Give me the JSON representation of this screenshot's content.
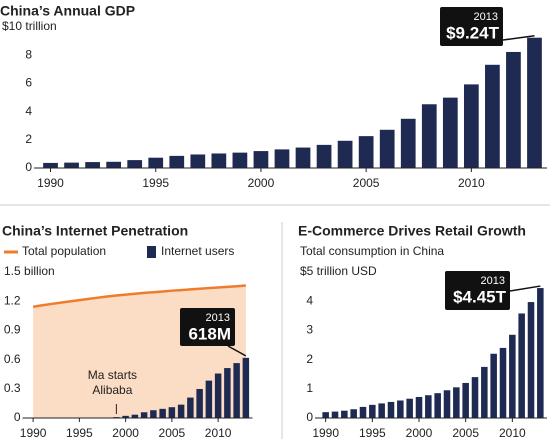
{
  "chart_data": [
    {
      "type": "bar",
      "title": "China’s Annual GDP",
      "x": [
        1990,
        1991,
        1992,
        1993,
        1994,
        1995,
        1996,
        1997,
        1998,
        1999,
        2000,
        2001,
        2002,
        2003,
        2004,
        2005,
        2006,
        2007,
        2008,
        2009,
        2010,
        2011,
        2012,
        2013
      ],
      "values": [
        0.36,
        0.38,
        0.42,
        0.44,
        0.56,
        0.73,
        0.86,
        0.96,
        1.03,
        1.09,
        1.2,
        1.32,
        1.45,
        1.64,
        1.93,
        2.26,
        2.71,
        3.49,
        4.52,
        4.99,
        5.93,
        7.32,
        8.23,
        9.24
      ],
      "color": "#1f2a52",
      "xlim": [
        1989.5,
        2013.5
      ],
      "xticks": [
        1990,
        1995,
        2000,
        2005,
        2010
      ],
      "ylim": [
        0,
        10
      ],
      "yticks": [
        0,
        2,
        4,
        6,
        8,
        {
          "value": 10,
          "label": "$10 trillion"
        }
      ],
      "callout": {
        "title": "2013",
        "text": "$9.24T"
      },
      "grid": false
    },
    {
      "type": "combo",
      "title": "China’s Internet Penetration",
      "x": [
        1990,
        1991,
        1992,
        1993,
        1994,
        1995,
        1996,
        1997,
        1998,
        1999,
        2000,
        2001,
        2002,
        2003,
        2004,
        2005,
        2006,
        2007,
        2008,
        2009,
        2010,
        2011,
        2012,
        2013
      ],
      "series": [
        {
          "name": "Total population",
          "type": "area",
          "color": "#f07c2b",
          "fill": "#fbdcc4",
          "values": [
            1.143,
            1.158,
            1.172,
            1.185,
            1.198,
            1.211,
            1.224,
            1.236,
            1.248,
            1.258,
            1.267,
            1.276,
            1.285,
            1.292,
            1.3,
            1.308,
            1.314,
            1.321,
            1.328,
            1.335,
            1.341,
            1.347,
            1.354,
            1.361
          ]
        },
        {
          "name": "Internet users",
          "type": "bar",
          "color": "#1f2a52",
          "values": [
            0,
            0,
            0,
            0,
            0,
            0,
            0,
            0,
            0.002,
            0.009,
            0.022,
            0.034,
            0.059,
            0.08,
            0.094,
            0.111,
            0.137,
            0.21,
            0.298,
            0.384,
            0.457,
            0.513,
            0.564,
            0.618
          ]
        }
      ],
      "xlim": [
        1989.5,
        2013.5
      ],
      "xticks": [
        1990,
        1995,
        2000,
        2005,
        2010
      ],
      "ylim": [
        0,
        1.5
      ],
      "yticks": [
        0,
        0.3,
        0.6,
        0.9,
        1.2,
        {
          "value": 1.5,
          "label": "1.5  billion"
        }
      ],
      "callout": {
        "title": "2013",
        "text": "618M"
      },
      "annotation": {
        "x": 1999,
        "lines": [
          "Ma starts",
          "Alibaba"
        ]
      },
      "grid": false
    },
    {
      "type": "bar",
      "title": "E-Commerce Drives Retail Growth",
      "subtitle": "Total consumption in China",
      "x": [
        1990,
        1991,
        1992,
        1993,
        1994,
        1995,
        1996,
        1997,
        1998,
        1999,
        2000,
        2001,
        2002,
        2003,
        2004,
        2005,
        2006,
        2007,
        2008,
        2009,
        2010,
        2011,
        2012,
        2013
      ],
      "values": [
        0.2,
        0.22,
        0.25,
        0.3,
        0.38,
        0.45,
        0.5,
        0.55,
        0.6,
        0.66,
        0.72,
        0.78,
        0.85,
        0.95,
        1.05,
        1.2,
        1.4,
        1.75,
        2.2,
        2.4,
        2.85,
        3.58,
        3.97,
        4.45
      ],
      "color": "#1f2a52",
      "xlim": [
        1989.5,
        2013.5
      ],
      "xticks": [
        1990,
        1995,
        2000,
        2005,
        2010
      ],
      "ylim": [
        0,
        5
      ],
      "yticks": [
        0,
        1,
        2,
        3,
        4,
        {
          "value": 5,
          "label": "$5 trillion USD"
        }
      ],
      "callout": {
        "title": "2013",
        "text": "$4.45T"
      },
      "grid": false
    }
  ]
}
